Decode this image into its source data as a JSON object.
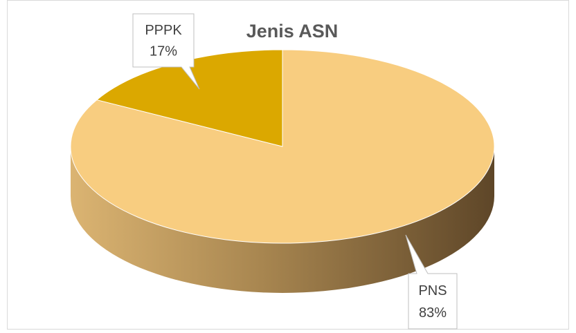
{
  "chart_data": {
    "type": "pie",
    "title": "Jenis ASN",
    "categories": [
      "PNS",
      "PPPK"
    ],
    "values": [
      83,
      17
    ],
    "value_labels": [
      "83%",
      "17%"
    ],
    "colors": [
      "#f8cd80",
      "#dba800"
    ]
  }
}
